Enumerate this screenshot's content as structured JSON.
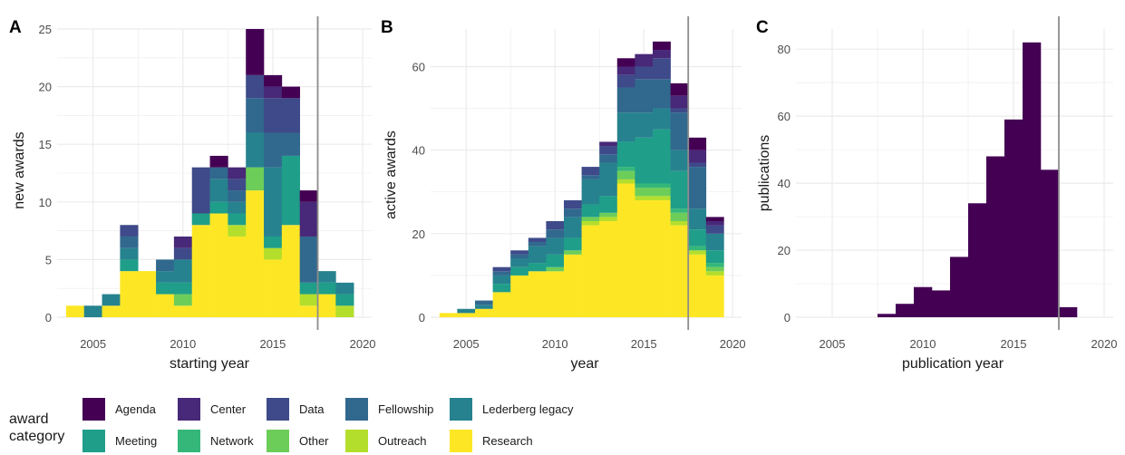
{
  "legend": {
    "title_line1": "award",
    "title_line2": "category"
  },
  "colors": {
    "Agenda": "#440154",
    "Center": "#482878",
    "Data": "#3E4A89",
    "Fellowship": "#31688E",
    "Lederberg legacy": "#26828E",
    "Meeting": "#1F9E89",
    "Network": "#35B779",
    "Other": "#6DCD59",
    "Outreach": "#B4DE2C",
    "Research": "#FDE725",
    "publications": "#440154",
    "grid": "#ebebeb",
    "vline": "#8c8c8c"
  },
  "chart_data": [
    {
      "type": "bar",
      "panel": "A",
      "stacked": true,
      "xlabel": "starting year",
      "ylabel": "new awards",
      "xlim": [
        2003,
        2020.5
      ],
      "ylim": [
        0,
        25
      ],
      "xticks": [
        2005,
        2010,
        2015,
        2020
      ],
      "yticks": [
        0,
        5,
        10,
        15,
        20,
        25
      ],
      "vline": 2017.5,
      "grid": true,
      "categories": [
        "2004",
        "2005",
        "2006",
        "2007",
        "2008",
        "2009",
        "2010",
        "2011",
        "2012",
        "2013",
        "2014",
        "2015",
        "2016",
        "2017",
        "2018",
        "2019"
      ],
      "series": [
        {
          "name": "Research",
          "values": [
            1,
            0,
            1,
            4,
            4,
            2,
            1,
            8,
            9,
            7,
            11,
            5,
            8,
            1,
            2,
            0
          ]
        },
        {
          "name": "Outreach",
          "values": [
            0,
            0,
            0,
            0,
            0,
            0,
            0,
            0,
            0,
            1,
            0,
            1,
            0,
            1,
            0,
            1
          ]
        },
        {
          "name": "Other",
          "values": [
            0,
            0,
            0,
            0,
            0,
            0,
            1,
            0,
            0,
            0,
            2,
            0,
            0,
            0,
            0,
            0
          ]
        },
        {
          "name": "Network",
          "values": [
            0,
            0,
            0,
            0,
            0,
            0,
            0,
            0,
            0,
            0,
            0,
            0,
            0,
            0,
            0,
            0
          ]
        },
        {
          "name": "Meeting",
          "values": [
            0,
            0,
            0,
            1,
            0,
            1,
            1,
            1,
            1,
            1,
            0,
            1,
            6,
            1,
            1,
            1
          ]
        },
        {
          "name": "Lederberg legacy",
          "values": [
            0,
            1,
            1,
            1,
            0,
            1,
            2,
            0,
            2,
            1,
            3,
            6,
            0,
            0,
            1,
            1
          ]
        },
        {
          "name": "Fellowship",
          "values": [
            0,
            0,
            0,
            1,
            0,
            1,
            0,
            0,
            1,
            1,
            3,
            3,
            2,
            4,
            0,
            0
          ]
        },
        {
          "name": "Data",
          "values": [
            0,
            0,
            0,
            1,
            0,
            0,
            1,
            4,
            0,
            1,
            2,
            3,
            3,
            0,
            0,
            0
          ]
        },
        {
          "name": "Center",
          "values": [
            0,
            0,
            0,
            0,
            0,
            0,
            1,
            0,
            0,
            1,
            0,
            1,
            0,
            3,
            0,
            0
          ]
        },
        {
          "name": "Agenda",
          "values": [
            0,
            0,
            0,
            0,
            0,
            0,
            0,
            0,
            1,
            0,
            4,
            1,
            1,
            1,
            0,
            0
          ]
        }
      ]
    },
    {
      "type": "bar",
      "panel": "B",
      "stacked": true,
      "xlabel": "year",
      "ylabel": "active awards",
      "xlim": [
        2003,
        2020.5
      ],
      "ylim": [
        0,
        69
      ],
      "xticks": [
        2005,
        2010,
        2015,
        2020
      ],
      "yticks": [
        0,
        20,
        40,
        60
      ],
      "vline": 2017.5,
      "grid": true,
      "categories": [
        "2004",
        "2005",
        "2006",
        "2007",
        "2008",
        "2009",
        "2010",
        "2011",
        "2012",
        "2013",
        "2014",
        "2015",
        "2016",
        "2017",
        "2018",
        "2019"
      ],
      "series": [
        {
          "name": "Research",
          "values": [
            1,
            1,
            2,
            6,
            10,
            11,
            11,
            15,
            22,
            23,
            32,
            28,
            28,
            22,
            15,
            10
          ]
        },
        {
          "name": "Outreach",
          "values": [
            0,
            0,
            0,
            0,
            0,
            0,
            0,
            0,
            1,
            1,
            1,
            1,
            1,
            1,
            1,
            1
          ]
        },
        {
          "name": "Other",
          "values": [
            0,
            0,
            0,
            0,
            0,
            0,
            1,
            1,
            1,
            1,
            2,
            2,
            2,
            2,
            0,
            1
          ]
        },
        {
          "name": "Network",
          "values": [
            0,
            0,
            0,
            0,
            0,
            0,
            0,
            0,
            0,
            0,
            1,
            1,
            1,
            1,
            1,
            1
          ]
        },
        {
          "name": "Meeting",
          "values": [
            0,
            0,
            0,
            2,
            2,
            2,
            3,
            3,
            3,
            4,
            6,
            11,
            13,
            9,
            4,
            3
          ]
        },
        {
          "name": "Lederberg legacy",
          "values": [
            0,
            1,
            1,
            2,
            2,
            4,
            4,
            5,
            6,
            8,
            7,
            6,
            5,
            5,
            5,
            4
          ]
        },
        {
          "name": "Fellowship",
          "values": [
            0,
            0,
            1,
            1,
            1,
            1,
            2,
            2,
            1,
            2,
            6,
            8,
            7,
            9,
            10,
            0
          ]
        },
        {
          "name": "Data",
          "values": [
            0,
            0,
            0,
            1,
            1,
            1,
            2,
            2,
            2,
            2,
            3,
            3,
            5,
            1,
            1,
            2
          ]
        },
        {
          "name": "Center",
          "values": [
            0,
            0,
            0,
            0,
            0,
            0,
            0,
            0,
            0,
            1,
            2,
            3,
            2,
            3,
            3,
            1
          ]
        },
        {
          "name": "Agenda",
          "values": [
            0,
            0,
            0,
            0,
            0,
            0,
            0,
            0,
            0,
            0,
            2,
            0,
            2,
            3,
            3,
            1
          ]
        }
      ]
    },
    {
      "type": "bar",
      "panel": "C",
      "stacked": false,
      "xlabel": "publication year",
      "ylabel": "publications",
      "xlim": [
        2003,
        2020.5
      ],
      "ylim": [
        0,
        86
      ],
      "xticks": [
        2005,
        2010,
        2015,
        2020
      ],
      "yticks": [
        0,
        20,
        40,
        60,
        80
      ],
      "vline": 2017.5,
      "grid": true,
      "categories": [
        "2008",
        "2009",
        "2010",
        "2011",
        "2012",
        "2013",
        "2014",
        "2015",
        "2016",
        "2017",
        "2018"
      ],
      "series": [
        {
          "name": "publications",
          "values": [
            1,
            4,
            9,
            8,
            18,
            34,
            48,
            59,
            82,
            44,
            3
          ]
        }
      ]
    }
  ]
}
